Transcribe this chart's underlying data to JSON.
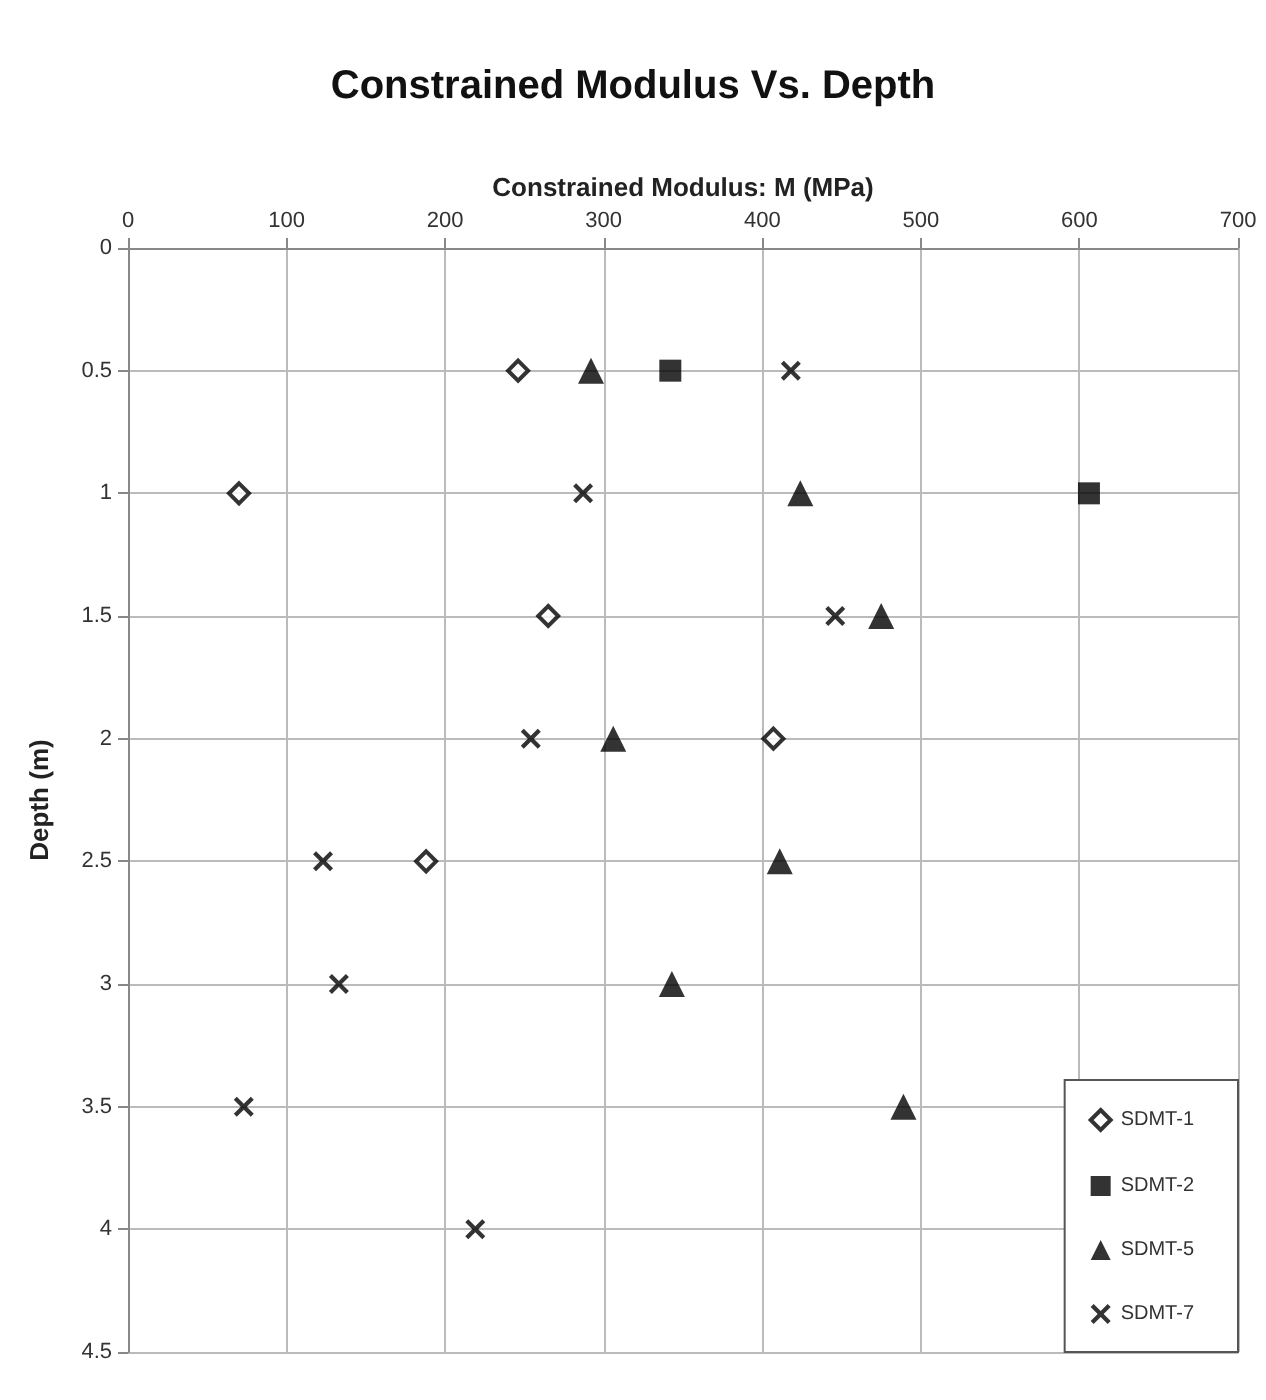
{
  "chart_data": {
    "type": "scatter",
    "title": "Constrained Modulus Vs. Depth",
    "xlabel": "Constrained Modulus: M (MPa)",
    "ylabel": "Depth (m)",
    "xlim": [
      0,
      700
    ],
    "xticks": [
      0,
      100,
      200,
      300,
      400,
      500,
      600,
      700
    ],
    "ylim": [
      4.5,
      0
    ],
    "yticks": [
      0,
      0.5,
      1,
      1.5,
      2,
      2.5,
      3,
      3.5,
      4,
      4.5
    ],
    "grid": true,
    "legend": "bottom right",
    "series": [
      {
        "name": "SDMT-1",
        "color": "#000000",
        "marker": "diamond",
        "x": [
          246,
          70,
          265,
          407,
          188
        ],
        "values": [
          0.5,
          1,
          1.5,
          2,
          2.5
        ]
      },
      {
        "name": "SDMT-2",
        "color": "#000000",
        "marker": "square",
        "x": [
          342,
          606
        ],
        "values": [
          0.5,
          1
        ]
      },
      {
        "name": "SDMT-5",
        "color": "#000000",
        "marker": "triangle",
        "x": [
          292,
          424,
          475,
          306,
          411,
          343,
          489
        ],
        "values": [
          0.5,
          1,
          1.5,
          2,
          2.5,
          3,
          3.5
        ]
      },
      {
        "name": "SDMT-7",
        "color": "#000000",
        "marker": "cross",
        "x": [
          418,
          287,
          446,
          254,
          123,
          133,
          73,
          219
        ],
        "values": [
          0.5,
          1,
          1.5,
          2,
          2.5,
          3,
          3.5,
          4
        ]
      }
    ]
  }
}
